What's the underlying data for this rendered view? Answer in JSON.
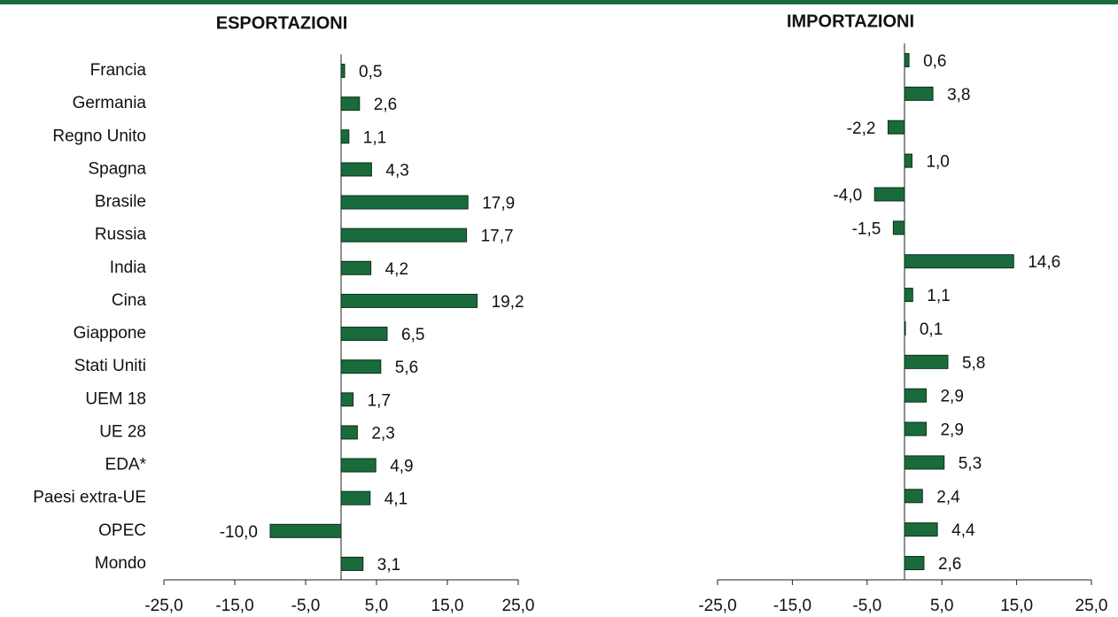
{
  "chart_data": [
    {
      "type": "hbar",
      "title": "ESPORTAZIONI",
      "categories": [
        "Francia",
        "Germania",
        "Regno Unito",
        "Spagna",
        "Brasile",
        "Russia",
        "India",
        "Cina",
        "Giappone",
        "Stati Uniti",
        "UEM 18",
        "UE 28",
        "EDA*",
        "Paesi extra-UE",
        "OPEC",
        "Mondo"
      ],
      "values": [
        0.5,
        2.6,
        1.1,
        4.3,
        17.9,
        17.7,
        4.2,
        19.2,
        6.5,
        5.6,
        1.7,
        2.3,
        4.9,
        4.1,
        -10.0,
        3.1
      ],
      "value_labels": [
        "0,5",
        "2,6",
        "1,1",
        "4,3",
        "17,9",
        "17,7",
        "4,2",
        "19,2",
        "6,5",
        "5,6",
        "1,7",
        "2,3",
        "4,9",
        "4,1",
        "-10,0",
        "3,1"
      ],
      "color": "#1a6b3c",
      "xlim": [
        -25,
        25
      ],
      "xticks": [
        {
          "value": -25,
          "label": "-25,0"
        },
        {
          "value": -15,
          "label": "-15,0"
        },
        {
          "value": -5,
          "label": "-5,0"
        },
        {
          "value": 5,
          "label": "5,0"
        },
        {
          "value": 15,
          "label": "15,0"
        },
        {
          "value": 25,
          "label": "25,0"
        }
      ]
    },
    {
      "type": "hbar",
      "title": "IMPORTAZIONI",
      "values": [
        0.6,
        3.8,
        -2.2,
        1.0,
        -4.0,
        -1.5,
        14.6,
        1.1,
        0.1,
        5.8,
        2.9,
        2.9,
        5.3,
        2.4,
        4.4,
        2.6
      ],
      "value_labels": [
        "0,6",
        "3,8",
        "-2,2",
        "1,0",
        "-4,0",
        "-1,5",
        "14,6",
        "1,1",
        "0,1",
        "5,8",
        "2,9",
        "2,9",
        "5,3",
        "2,4",
        "4,4",
        "2,6"
      ],
      "color": "#1a6b3c",
      "xlim": [
        -25,
        25
      ],
      "xticks": [
        {
          "value": -25,
          "label": "-25,0"
        },
        {
          "value": -15,
          "label": "-15,0"
        },
        {
          "value": -5,
          "label": "-5,0"
        },
        {
          "value": 5,
          "label": "5,0"
        },
        {
          "value": 15,
          "label": "15,0"
        },
        {
          "value": 25,
          "label": "25,0"
        }
      ]
    }
  ]
}
